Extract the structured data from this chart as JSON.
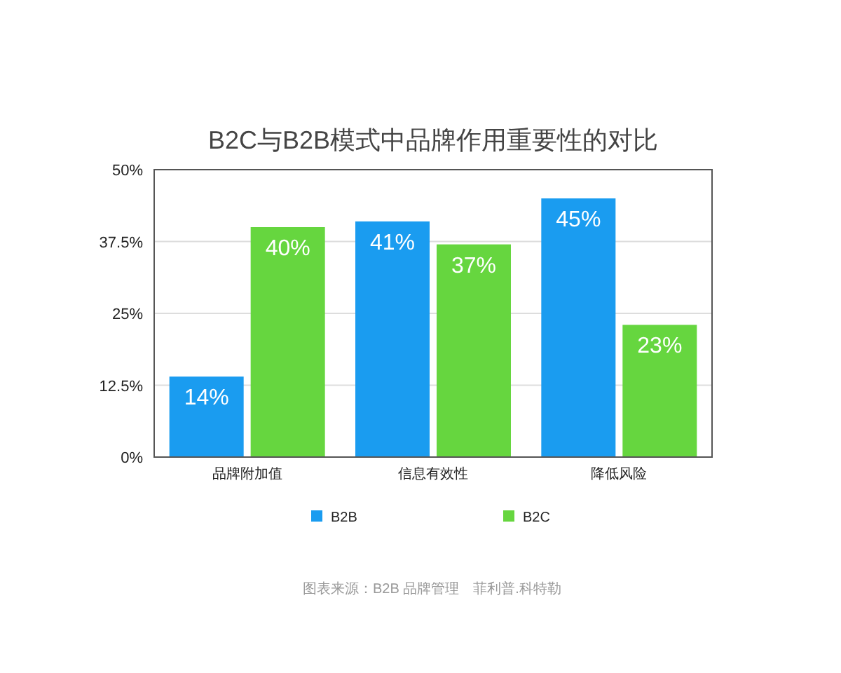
{
  "chart_data": {
    "type": "bar",
    "title": "B2C与B2B模式中品牌作用重要性的对比",
    "categories": [
      "品牌附加值",
      "信息有效性",
      "降低风险"
    ],
    "series": [
      {
        "name": "B2B",
        "color": "#1a9cf0",
        "values": [
          14,
          41,
          45
        ],
        "value_labels": [
          "14%",
          "41%",
          "45%"
        ]
      },
      {
        "name": "B2C",
        "color": "#66d63f",
        "values": [
          40,
          37,
          23
        ],
        "value_labels": [
          "40%",
          "37%",
          "23%"
        ]
      }
    ],
    "ylim": [
      0,
      50
    ],
    "yticks": [
      {
        "value": 0,
        "label": "0%"
      },
      {
        "value": 12.5,
        "label": "12.5%"
      },
      {
        "value": 25,
        "label": "25%"
      },
      {
        "value": 37.5,
        "label": "37.5%"
      },
      {
        "value": 50,
        "label": "50%"
      }
    ],
    "grid": "y",
    "legend": "bottom",
    "annotations": [
      "图表来源：B2B 品牌管理　菲利普.科特勒"
    ]
  }
}
